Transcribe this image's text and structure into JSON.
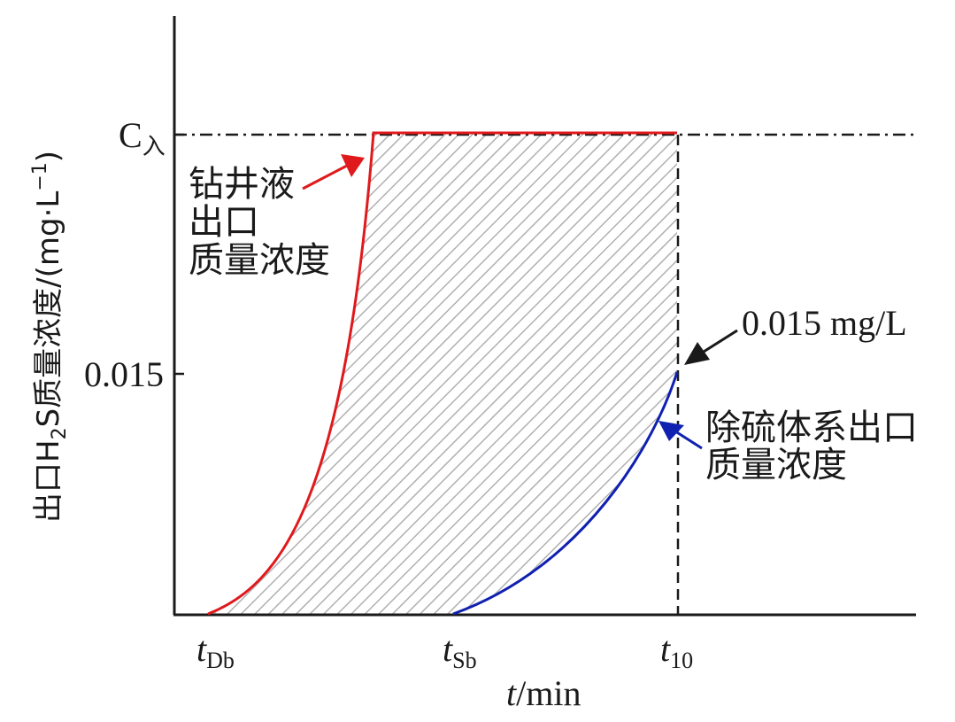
{
  "figure": {
    "y_axis": {
      "label_prefix": "出口H",
      "label_sub": "2",
      "label_mid": "S质量浓度/(mg·L",
      "label_sup": "−1",
      "label_suffix": ")",
      "ticks": [
        {
          "label": "0.015",
          "value": 0.015
        },
        {
          "label": "C",
          "sub": "入"
        }
      ]
    },
    "x_axis": {
      "label_var": "t",
      "label_unit": "/min",
      "ticks": [
        {
          "var": "t",
          "sub": "Db"
        },
        {
          "var": "t",
          "sub": "Sb"
        },
        {
          "var": "t",
          "sub": "10"
        }
      ]
    },
    "annotations": {
      "drilling_fluid": {
        "lines": [
          "钻井液",
          "出口",
          "质量浓度"
        ],
        "color": "#e0191c"
      },
      "desulfurization": {
        "lines": [
          "除硫体系出口",
          "质量浓度"
        ],
        "color": "#1020b0"
      },
      "threshold": {
        "text": "0.015 mg/L",
        "color": "#1a1a1a"
      }
    },
    "colors": {
      "axis": "#1a1a1a",
      "hatch": "#b0b0b0",
      "red_curve": "#e0191c",
      "blue_curve": "#1020b0"
    }
  }
}
